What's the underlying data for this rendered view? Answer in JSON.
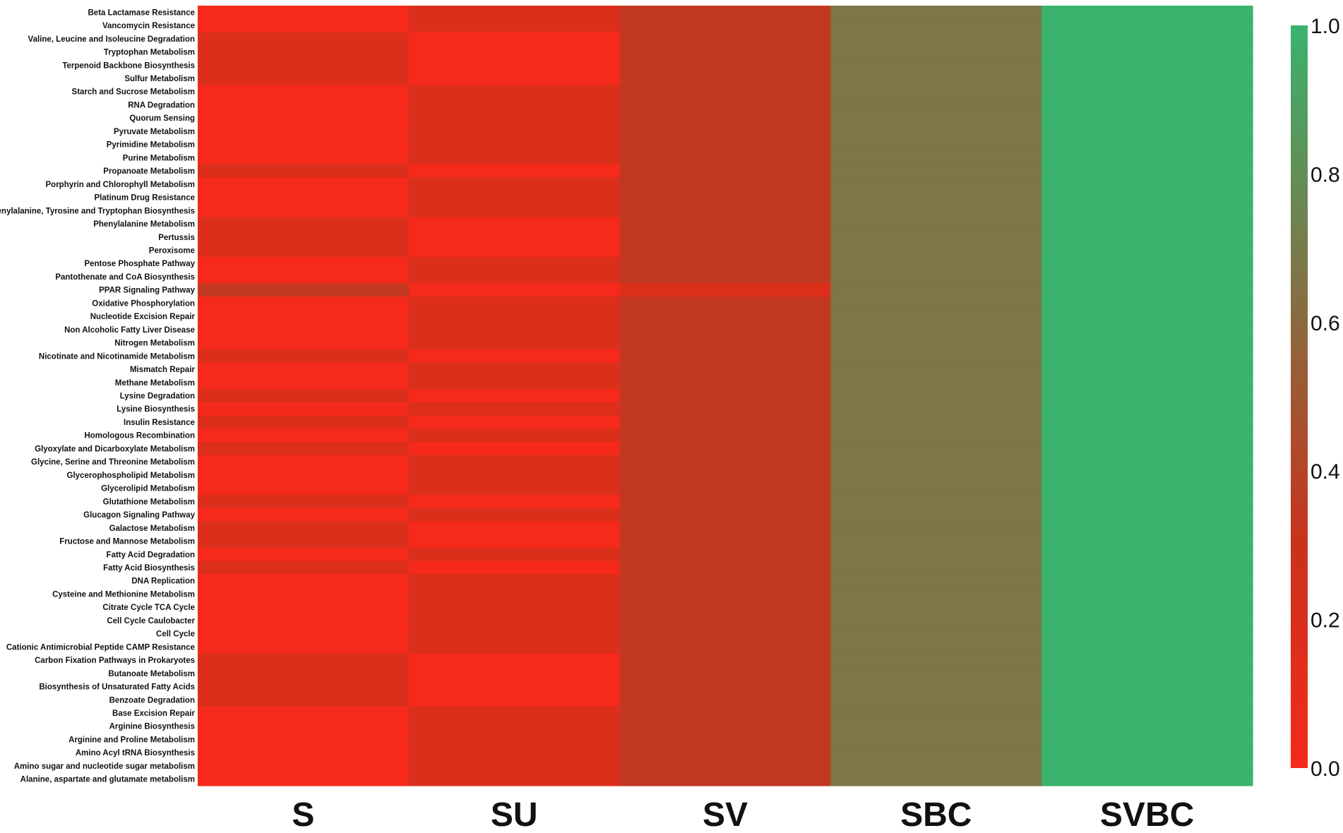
{
  "chart_data": {
    "type": "heatmap",
    "columns": [
      "S",
      "SU",
      "SV",
      "SBC",
      "SVBC"
    ],
    "rows": [
      "Beta Lactamase Resistance",
      "Vancomycin Resistance",
      "Valine, Leucine and Isoleucine Degradation",
      "Tryptophan Metabolism",
      "Terpenoid Backbone Biosynthesis",
      "Sulfur Metabolism",
      "Starch and Sucrose Metabolism",
      "RNA Degradation",
      "Quorum Sensing",
      "Pyruvate Metabolism",
      "Pyrimidine Metabolism",
      "Purine Metabolism",
      "Propanoate Metabolism",
      "Porphyrin and Chlorophyll Metabolism",
      "Platinum Drug Resistance",
      "Phenylalanine, Tyrosine and Tryptophan Biosynthesis",
      "Phenylalanine Metabolism",
      "Pertussis",
      "Peroxisome",
      "Pentose Phosphate Pathway",
      "Pantothenate and CoA Biosynthesis",
      "PPAR Signaling Pathway",
      "Oxidative Phosphorylation",
      "Nucleotide Excision Repair",
      "Non Alcoholic Fatty Liver Disease",
      "Nitrogen Metabolism",
      "Nicotinate and Nicotinamide Metabolism",
      "Mismatch Repair",
      "Methane Metabolism",
      "Lysine Degradation",
      "Lysine Biosynthesis",
      "Insulin Resistance",
      "Homologous Recombination",
      "Glyoxylate and Dicarboxylate Metabolism",
      "Glycine, Serine and Threonine Metabolism",
      "Glycerophospholipid Metabolism",
      "Glycerolipid Metabolism",
      "Glutathione Metabolism",
      "Glucagon Signaling Pathway",
      "Galactose Metabolism",
      "Fructose and Mannose Metabolism",
      "Fatty Acid Degradation",
      "Fatty Acid Biosynthesis",
      "DNA Replication",
      "Cysteine and Methionine Metabolism",
      "Citrate Cycle TCA Cycle",
      "Cell Cycle Caulobacter",
      "Cell Cycle",
      "Cationic Antimicrobial Peptide CAMP Resistance",
      "Carbon Fixation Pathways in Prokaryotes",
      "Butanoate Metabolism",
      "Biosynthesis of Unsaturated Fatty Acids",
      "Benzoate Degradation",
      "Base Excision Repair",
      "Arginine Biosynthesis",
      "Arginine and Proline Metabolism",
      "Amino Acyl tRNA Biosynthesis",
      "Amino sugar and nucleotide sugar metabolism",
      "Alanine, aspartate and glutamate metabolism"
    ],
    "values": [
      [
        0.0,
        0.17,
        0.33,
        0.67,
        1.0
      ],
      [
        0.0,
        0.17,
        0.33,
        0.67,
        1.0
      ],
      [
        0.17,
        0.0,
        0.33,
        0.67,
        1.0
      ],
      [
        0.17,
        0.0,
        0.33,
        0.67,
        1.0
      ],
      [
        0.17,
        0.0,
        0.33,
        0.67,
        1.0
      ],
      [
        0.17,
        0.0,
        0.33,
        0.67,
        1.0
      ],
      [
        0.0,
        0.17,
        0.33,
        0.67,
        1.0
      ],
      [
        0.0,
        0.17,
        0.33,
        0.67,
        1.0
      ],
      [
        0.0,
        0.17,
        0.33,
        0.67,
        1.0
      ],
      [
        0.0,
        0.17,
        0.33,
        0.67,
        1.0
      ],
      [
        0.0,
        0.17,
        0.33,
        0.67,
        1.0
      ],
      [
        0.0,
        0.17,
        0.33,
        0.67,
        1.0
      ],
      [
        0.17,
        0.0,
        0.33,
        0.67,
        1.0
      ],
      [
        0.0,
        0.17,
        0.33,
        0.67,
        1.0
      ],
      [
        0.0,
        0.17,
        0.33,
        0.67,
        1.0
      ],
      [
        0.0,
        0.17,
        0.33,
        0.67,
        1.0
      ],
      [
        0.17,
        0.0,
        0.33,
        0.67,
        1.0
      ],
      [
        0.17,
        0.0,
        0.33,
        0.67,
        1.0
      ],
      [
        0.17,
        0.0,
        0.33,
        0.67,
        1.0
      ],
      [
        0.0,
        0.17,
        0.33,
        0.67,
        1.0
      ],
      [
        0.0,
        0.17,
        0.33,
        0.67,
        1.0
      ],
      [
        0.33,
        0.0,
        0.17,
        0.67,
        1.0
      ],
      [
        0.0,
        0.17,
        0.33,
        0.67,
        1.0
      ],
      [
        0.0,
        0.17,
        0.33,
        0.67,
        1.0
      ],
      [
        0.0,
        0.17,
        0.33,
        0.67,
        1.0
      ],
      [
        0.0,
        0.17,
        0.33,
        0.67,
        1.0
      ],
      [
        0.17,
        0.0,
        0.33,
        0.67,
        1.0
      ],
      [
        0.0,
        0.17,
        0.33,
        0.67,
        1.0
      ],
      [
        0.0,
        0.17,
        0.33,
        0.67,
        1.0
      ],
      [
        0.17,
        0.0,
        0.33,
        0.67,
        1.0
      ],
      [
        0.0,
        0.17,
        0.33,
        0.67,
        1.0
      ],
      [
        0.17,
        0.0,
        0.33,
        0.67,
        1.0
      ],
      [
        0.0,
        0.17,
        0.33,
        0.67,
        1.0
      ],
      [
        0.17,
        0.0,
        0.33,
        0.67,
        1.0
      ],
      [
        0.0,
        0.17,
        0.33,
        0.67,
        1.0
      ],
      [
        0.0,
        0.17,
        0.33,
        0.67,
        1.0
      ],
      [
        0.0,
        0.17,
        0.33,
        0.67,
        1.0
      ],
      [
        0.17,
        0.0,
        0.33,
        0.67,
        1.0
      ],
      [
        0.0,
        0.17,
        0.33,
        0.67,
        1.0
      ],
      [
        0.17,
        0.0,
        0.33,
        0.67,
        1.0
      ],
      [
        0.17,
        0.0,
        0.33,
        0.67,
        1.0
      ],
      [
        0.0,
        0.17,
        0.33,
        0.67,
        1.0
      ],
      [
        0.17,
        0.0,
        0.33,
        0.67,
        1.0
      ],
      [
        0.0,
        0.17,
        0.33,
        0.67,
        1.0
      ],
      [
        0.0,
        0.17,
        0.33,
        0.67,
        1.0
      ],
      [
        0.0,
        0.17,
        0.33,
        0.67,
        1.0
      ],
      [
        0.0,
        0.17,
        0.33,
        0.67,
        1.0
      ],
      [
        0.0,
        0.17,
        0.33,
        0.67,
        1.0
      ],
      [
        0.0,
        0.17,
        0.33,
        0.67,
        1.0
      ],
      [
        0.17,
        0.0,
        0.33,
        0.67,
        1.0
      ],
      [
        0.17,
        0.0,
        0.33,
        0.67,
        1.0
      ],
      [
        0.17,
        0.0,
        0.33,
        0.67,
        1.0
      ],
      [
        0.17,
        0.0,
        0.33,
        0.67,
        1.0
      ],
      [
        0.0,
        0.17,
        0.33,
        0.67,
        1.0
      ],
      [
        0.0,
        0.17,
        0.33,
        0.67,
        1.0
      ],
      [
        0.0,
        0.17,
        0.33,
        0.67,
        1.0
      ],
      [
        0.0,
        0.17,
        0.33,
        0.67,
        1.0
      ],
      [
        0.0,
        0.17,
        0.33,
        0.67,
        1.0
      ],
      [
        0.0,
        0.17,
        0.33,
        0.67,
        1.0
      ]
    ],
    "colorbar": {
      "min": 0.0,
      "max": 1.0,
      "ticks": [
        "0.0",
        "0.2",
        "0.4",
        "0.6",
        "0.8",
        "1.0"
      ],
      "low_color": "#f52a1a",
      "mid_color": "#c9321c",
      "high_color": "#39b36e"
    }
  }
}
